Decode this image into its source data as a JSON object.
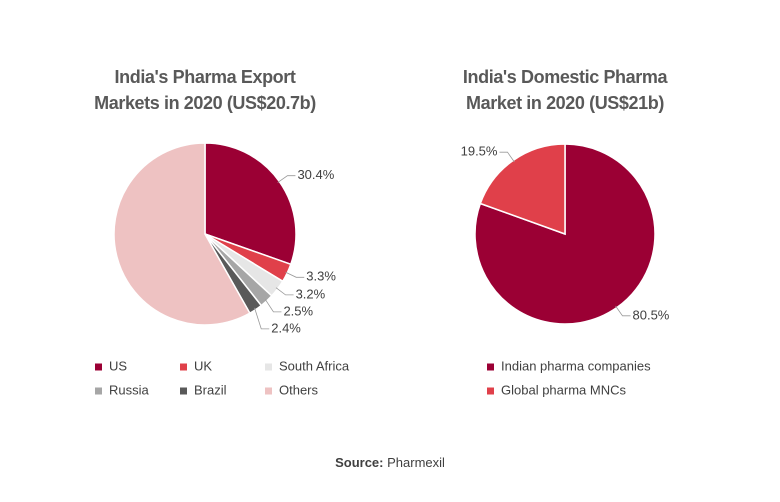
{
  "chart_data": [
    {
      "type": "pie",
      "title": "India's Pharma Export Markets in 2020 (US$20.7b)",
      "categories": [
        "US",
        "UK",
        "South Africa",
        "Russia",
        "Brazil",
        "Others"
      ],
      "values": [
        30.4,
        3.3,
        3.2,
        2.5,
        2.4,
        58.2
      ],
      "value_labels": [
        "30.4%",
        "3.3%",
        "3.2%",
        "2.5%",
        "2.4%",
        null
      ],
      "colors": [
        "#9b0034",
        "#e0404a",
        "#e6e6e6",
        "#a6a6a6",
        "#595959",
        "#eec2c2"
      ]
    },
    {
      "type": "pie",
      "title": "India's Domestic Pharma Market in 2020 (US$21b)",
      "categories": [
        "Indian pharma companies",
        "Global pharma MNCs"
      ],
      "values": [
        80.5,
        19.5
      ],
      "value_labels": [
        "80.5%",
        "19.5%"
      ],
      "colors": [
        "#9b0034",
        "#e0404a"
      ]
    }
  ],
  "source": {
    "label": "Source:",
    "text": "Pharmexil"
  }
}
